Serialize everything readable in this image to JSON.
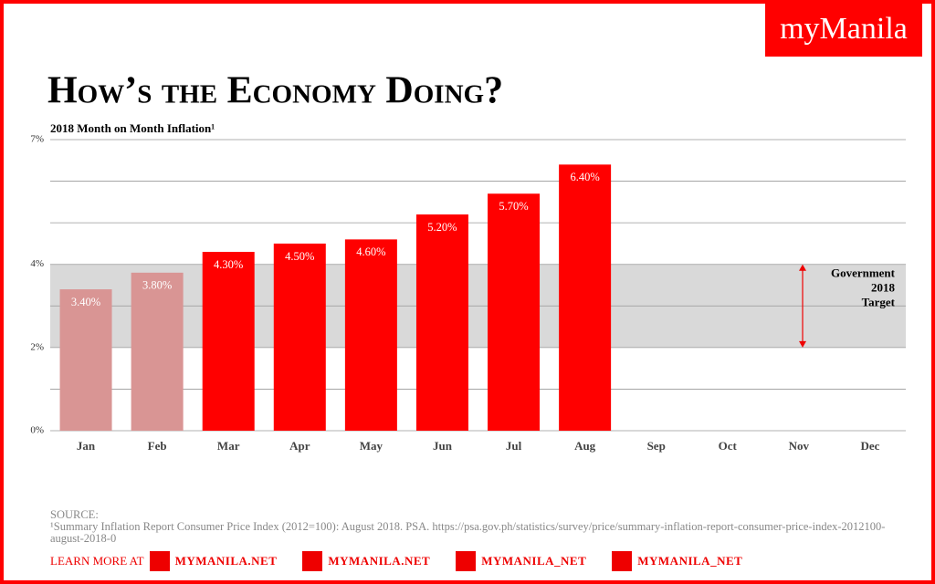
{
  "brand": "myManila",
  "chart_data": {
    "type": "bar",
    "title": "How’s the Economy Doing?",
    "subtitle": "2018 Month on Month Inflation¹",
    "categories": [
      "Jan",
      "Feb",
      "Mar",
      "Apr",
      "May",
      "Jun",
      "Jul",
      "Aug",
      "Sep",
      "Oct",
      "Nov",
      "Dec"
    ],
    "values": [
      3.4,
      3.8,
      4.3,
      4.5,
      4.6,
      5.2,
      5.7,
      6.4,
      null,
      null,
      null,
      null
    ],
    "value_labels": [
      "3.40%",
      "3.80%",
      "4.30%",
      "4.50%",
      "4.60%",
      "5.20%",
      "5.70%",
      "6.40%",
      null,
      null,
      null,
      null
    ],
    "colors": [
      "#d99594",
      "#d99594",
      "#ff0000",
      "#ff0000",
      "#ff0000",
      "#ff0000",
      "#ff0000",
      "#ff0000",
      null,
      null,
      null,
      null
    ],
    "ylim": [
      0,
      7
    ],
    "yticks": [
      {
        "value": 0,
        "label": "0%"
      },
      {
        "value": 2,
        "label": "2%"
      },
      {
        "value": 4,
        "label": "4%"
      },
      {
        "value": 7,
        "label": "7%"
      }
    ],
    "ygrid": [
      0,
      1,
      2,
      3,
      4,
      5,
      6,
      7
    ],
    "target_band": {
      "range": [
        2,
        4
      ],
      "label": [
        "Government",
        "2018",
        "Target"
      ],
      "color": "#d9d9d9"
    }
  },
  "source": {
    "heading": "SOURCE:",
    "note": "¹Summary Inflation Report Consumer Price Index (2012=100): August 2018. PSA. https://psa.gov.ph/statistics/survey/price/summary-inflation-report-consumer-price-index-2012100-august-2018-0"
  },
  "footer": {
    "lead": "LEARN MORE AT",
    "links": [
      "MYMANILA.NET",
      "MYMANILA.NET",
      "MYMANILA_NET",
      "MYMANILA_NET"
    ]
  }
}
